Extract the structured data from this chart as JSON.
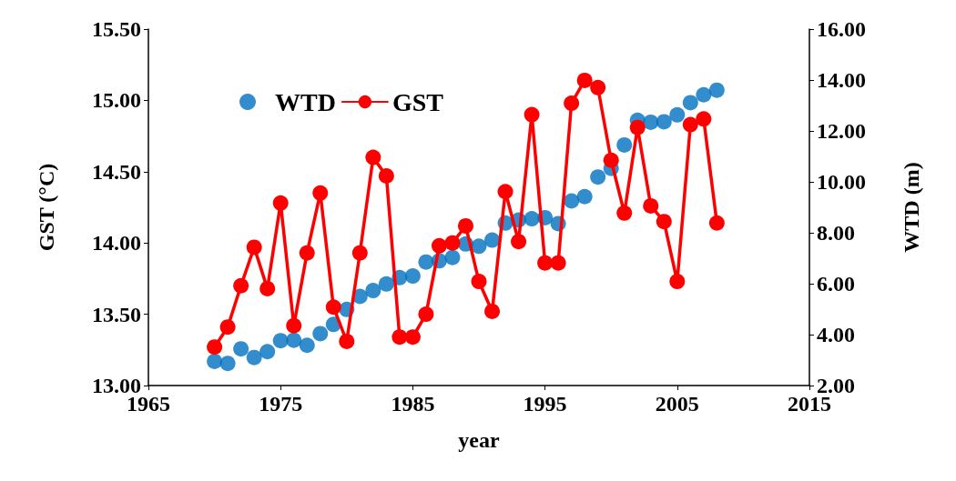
{
  "chart_data": {
    "type": "line",
    "xlabel": "year",
    "ylabel": "GST (°C)",
    "y2label": "WTD (m)",
    "x": [
      1970,
      1971,
      1972,
      1973,
      1974,
      1975,
      1976,
      1977,
      1978,
      1979,
      1980,
      1981,
      1982,
      1983,
      1984,
      1985,
      1986,
      1987,
      1988,
      1989,
      1990,
      1991,
      1992,
      1993,
      1994,
      1995,
      1996,
      1997,
      1998,
      1999,
      2000,
      2001,
      2002,
      2003,
      2004,
      2005,
      2006,
      2007,
      2008
    ],
    "series": [
      {
        "name": "WTD",
        "type": "scatter",
        "axis": "y2",
        "color": "#0070c0",
        "values": [
          2.95,
          2.87,
          3.44,
          3.1,
          3.33,
          3.76,
          3.78,
          3.58,
          4.04,
          4.4,
          4.99,
          5.5,
          5.73,
          5.99,
          6.24,
          6.3,
          6.85,
          6.9,
          7.03,
          7.56,
          7.47,
          7.71,
          8.38,
          8.5,
          8.55,
          8.59,
          8.36,
          9.25,
          9.42,
          10.19,
          10.53,
          11.45,
          12.42,
          12.34,
          12.36,
          12.63,
          13.11,
          13.42,
          13.6
        ]
      },
      {
        "name": "GST",
        "color": "#ff0000",
        "values": [
          13.27,
          13.41,
          13.7,
          13.97,
          13.68,
          14.28,
          13.42,
          13.93,
          14.35,
          13.55,
          13.31,
          13.93,
          14.6,
          14.47,
          13.34,
          13.34,
          13.5,
          13.98,
          14.0,
          14.12,
          13.73,
          13.52,
          14.36,
          14.01,
          14.9,
          13.86,
          13.86,
          14.98,
          15.14,
          15.09,
          14.58,
          14.21,
          14.81,
          14.26,
          14.15,
          13.73,
          14.83,
          14.87,
          14.14
        ]
      }
    ],
    "xlim": [
      1965,
      2015
    ],
    "xticks": [
      1965,
      1975,
      1985,
      1995,
      2005,
      2015
    ],
    "ylim": [
      13,
      15.5
    ],
    "yticks": [
      {
        "value": 13,
        "label": "13.00"
      },
      {
        "value": 13.5,
        "label": "13.50"
      },
      {
        "value": 14,
        "label": "14.00"
      },
      {
        "value": 14.5,
        "label": "14.50"
      },
      {
        "value": 15,
        "label": "15.00"
      },
      {
        "value": 15.5,
        "label": "15.50"
      }
    ],
    "y2lim": [
      2,
      16
    ],
    "y2ticks": [
      {
        "value": 2,
        "label": "2.00"
      },
      {
        "value": 4,
        "label": "4.00"
      },
      {
        "value": 6,
        "label": "6.00"
      },
      {
        "value": 8,
        "label": "8.00"
      },
      {
        "value": 10,
        "label": "10.00"
      },
      {
        "value": 12,
        "label": "12.00"
      },
      {
        "value": 14,
        "label": "14.00"
      },
      {
        "value": 16,
        "label": "16.00"
      }
    ],
    "grid": false,
    "legend": "top left",
    "marker": "circle",
    "line_style": "solid"
  }
}
